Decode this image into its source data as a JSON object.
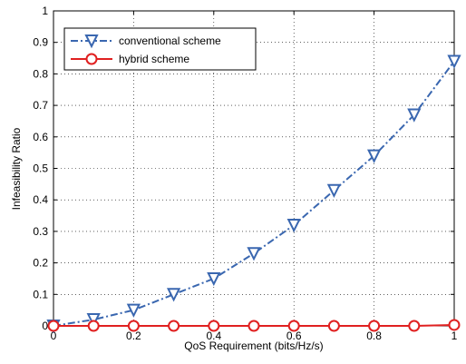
{
  "chart_data": {
    "type": "line",
    "xlabel": "QoS Requirement (bits/Hz/s)",
    "ylabel": "Infeasibility Ratio",
    "xlim": [
      0,
      1
    ],
    "ylim": [
      0,
      1
    ],
    "x_ticks": [
      "0",
      "0.2",
      "0.4",
      "0.6",
      "0.8",
      "1"
    ],
    "y_ticks": [
      "0",
      "0.1",
      "0.2",
      "0.3",
      "0.4",
      "0.5",
      "0.6",
      "0.7",
      "0.8",
      "0.9",
      "1"
    ],
    "grid": "dotted",
    "legend_position": "top-left",
    "x": [
      0,
      0.1,
      0.2,
      0.3,
      0.4,
      0.5,
      0.6,
      0.7,
      0.8,
      0.9,
      1.0
    ],
    "series": [
      {
        "name": "conventional scheme",
        "color": "#3a67b0",
        "line_style": "dash-dot",
        "marker": "down-triangle",
        "values": [
          0.0,
          0.02,
          0.05,
          0.1,
          0.15,
          0.23,
          0.32,
          0.43,
          0.54,
          0.67,
          0.84
        ]
      },
      {
        "name": "hybrid scheme",
        "color": "#e02020",
        "line_style": "solid",
        "marker": "circle",
        "values": [
          0.0,
          0.0,
          0.0,
          0.0,
          0.0,
          0.0,
          0.0,
          0.0,
          0.0,
          0.0,
          0.003
        ]
      }
    ]
  }
}
